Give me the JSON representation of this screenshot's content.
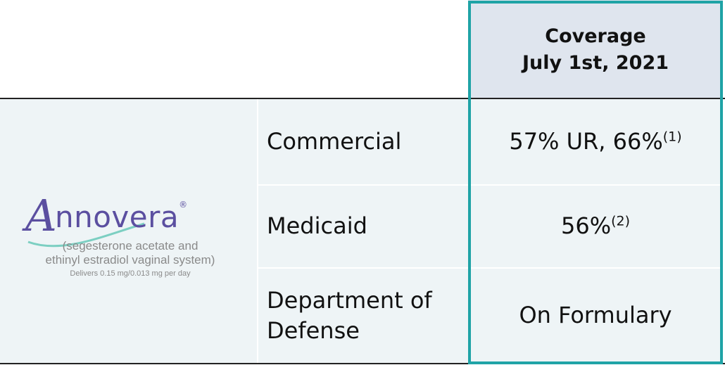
{
  "header": {
    "title_lines": [
      "Coverage",
      "July 1st, 2021"
    ]
  },
  "logo": {
    "initial": "A",
    "name": "nnovera",
    "mark": "®",
    "generic_lines": [
      "(segesterone acetate and",
      "ethinyl estradiol vaginal system)"
    ],
    "dose": "Delivers 0.15 mg/0.013 mg per day"
  },
  "table": {
    "rows": [
      {
        "segment": "Commercial",
        "coverage": "57% UR, 66%",
        "footnote": "(1)"
      },
      {
        "segment": "Medicaid",
        "coverage": "56%",
        "footnote": "(2)"
      },
      {
        "segment": "Department of Defense",
        "coverage": "On Formulary"
      }
    ]
  }
}
